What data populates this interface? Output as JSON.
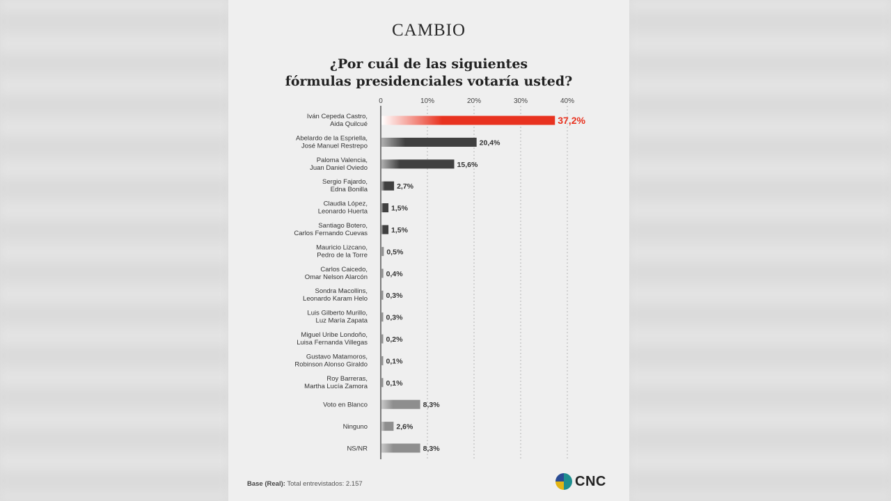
{
  "brand": "CAMBIO",
  "title_line1": "¿Por cuál de las siguientes",
  "title_line2": "fórmulas presidenciales votaría usted?",
  "footer": {
    "base_label": "Base (Real):",
    "base_text": "Total entrevistados: 2.157"
  },
  "logo": {
    "text": "CNC"
  },
  "colors": {
    "highlight": "#e8321f",
    "dark_bar": "#404040",
    "light_bar": "#8e8e8e"
  },
  "chart_data": {
    "type": "bar",
    "orientation": "horizontal",
    "title": "¿Por cuál de las siguientes fórmulas presidenciales votaría usted?",
    "x_ticks": [
      "0",
      "10%",
      "20%",
      "30%",
      "40%"
    ],
    "xlim": [
      0,
      40
    ],
    "grid": true,
    "categories": [
      [
        "Iván Cepeda Castro,",
        "Aida Quilcué"
      ],
      [
        "Abelardo de la Espriella,",
        "José Manuel Restrepo"
      ],
      [
        "Paloma Valencia,",
        "Juan Daniel Oviedo"
      ],
      [
        "Sergio Fajardo,",
        "Edna Bonilla"
      ],
      [
        "Claudia López,",
        "Leonardo Huerta"
      ],
      [
        "Santiago Botero,",
        "Carlos Fernando Cuevas"
      ],
      [
        "Mauricio Lizcano,",
        "Pedro de la Torre"
      ],
      [
        "Carlos Caicedo,",
        "Omar Nelson Alarcón"
      ],
      [
        "Sondra Macollins,",
        "Leonardo Karam Helo"
      ],
      [
        "Luis Gilberto Murillo,",
        "Luz María Zapata"
      ],
      [
        "Miguel Uribe Londoño,",
        "Luisa Fernanda Villegas"
      ],
      [
        "Gustavo Matamoros,",
        "Robinson Alonso Giraldo"
      ],
      [
        "Roy Barreras,",
        "Martha Lucía Zamora"
      ],
      [
        "Voto en Blanco"
      ],
      [
        "Ninguno"
      ],
      [
        "NS/NR"
      ]
    ],
    "values": [
      37.2,
      20.4,
      15.6,
      2.7,
      1.5,
      1.5,
      0.5,
      0.4,
      0.3,
      0.3,
      0.2,
      0.1,
      0.1,
      8.3,
      2.6,
      8.3
    ],
    "value_labels": [
      "37,2%",
      "20,4%",
      "15,6%",
      "2,7%",
      "1,5%",
      "1,5%",
      "0,5%",
      "0,4%",
      "0,3%",
      "0,3%",
      "0,2%",
      "0,1%",
      "0,1%",
      "8,3%",
      "2,6%",
      "8,3%"
    ],
    "bar_style": [
      "highlight",
      "dark",
      "dark",
      "dark",
      "dark",
      "dark",
      "light",
      "light",
      "light",
      "light",
      "light",
      "light",
      "light",
      "light",
      "light",
      "light"
    ]
  }
}
